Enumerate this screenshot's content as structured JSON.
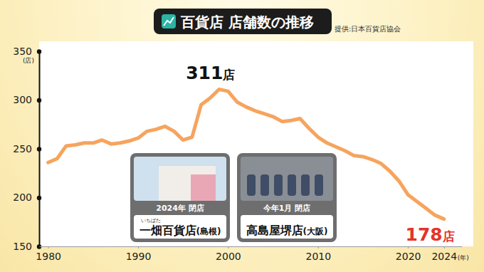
{
  "chart_data": {
    "type": "line",
    "title": "百貨店 店舗数の推移",
    "source": "提供:日本百貨店協会",
    "x_label": "(年)",
    "y_label": "(店)",
    "x": [
      1980,
      1981,
      1982,
      1983,
      1984,
      1985,
      1986,
      1987,
      1988,
      1989,
      1990,
      1991,
      1992,
      1993,
      1994,
      1995,
      1996,
      1997,
      1998,
      1999,
      2000,
      2001,
      2002,
      2003,
      2004,
      2005,
      2006,
      2007,
      2008,
      2009,
      2010,
      2011,
      2012,
      2013,
      2014,
      2015,
      2016,
      2017,
      2018,
      2019,
      2020,
      2021,
      2022,
      2023,
      2024
    ],
    "values": [
      236,
      240,
      253,
      254,
      256,
      256,
      259,
      255,
      256,
      258,
      261,
      268,
      270,
      273,
      268,
      259,
      262,
      295,
      302,
      311,
      309,
      298,
      293,
      289,
      286,
      283,
      278,
      279,
      281,
      271,
      262,
      256,
      252,
      248,
      243,
      242,
      239,
      235,
      227,
      217,
      203,
      196,
      189,
      182,
      178
    ],
    "color": "#f6a45e",
    "xlim": [
      1979,
      2026
    ],
    "xticks": [
      1980,
      1990,
      2000,
      2010,
      2020,
      2024
    ],
    "ylim": [
      150,
      350
    ],
    "yticks": [
      150,
      200,
      250,
      300,
      350
    ],
    "grid": false,
    "annotations": [
      {
        "text": "311店",
        "x": 1999,
        "y": 311
      },
      {
        "text": "178店",
        "x": 2024,
        "y": 178,
        "color": "#e5332a"
      }
    ],
    "callouts": [
      {
        "caption": "2024年 閉店",
        "label": "一畑百貨店(島根)",
        "ruby": "いちばた"
      },
      {
        "caption": "今年1月 閉店",
        "label": "高島屋堺店(大阪)"
      }
    ]
  }
}
